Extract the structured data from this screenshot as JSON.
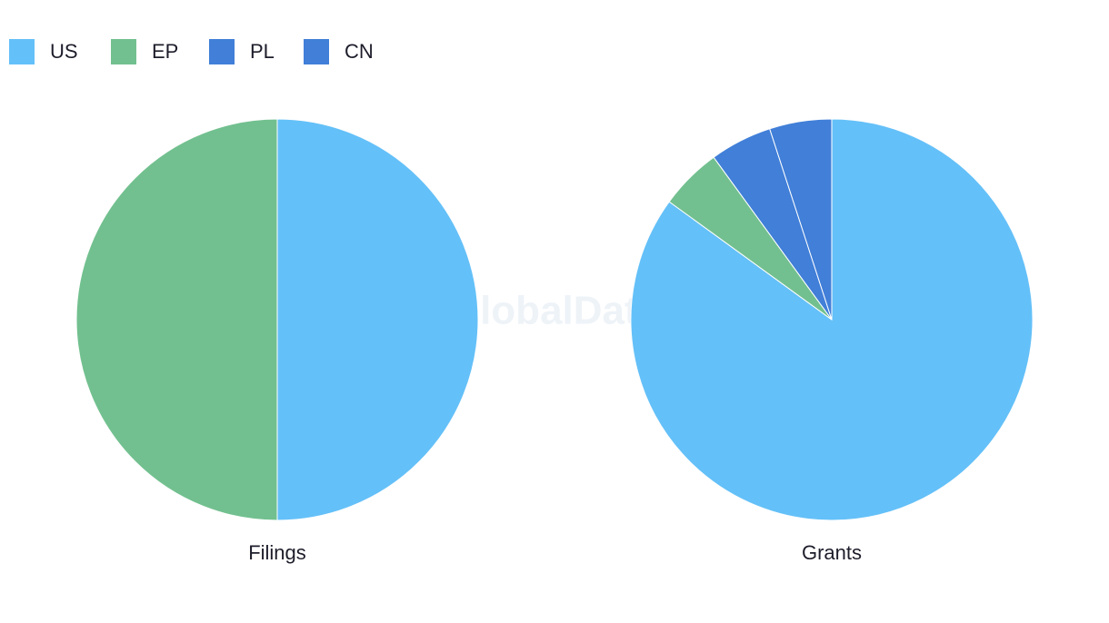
{
  "watermark": "GlobalData",
  "chart_data": [
    {
      "type": "pie",
      "title": "Filings",
      "categories": [
        "US",
        "EP"
      ],
      "values": [
        50,
        50
      ],
      "colors": [
        "#64c0f8",
        "#72c08f"
      ]
    },
    {
      "type": "pie",
      "title": "Grants",
      "categories": [
        "US",
        "EP",
        "PL",
        "CN"
      ],
      "values": [
        85,
        5,
        5,
        5
      ],
      "colors": [
        "#64c0f8",
        "#72c08f",
        "#417fd8",
        "#417fd8"
      ]
    }
  ]
}
